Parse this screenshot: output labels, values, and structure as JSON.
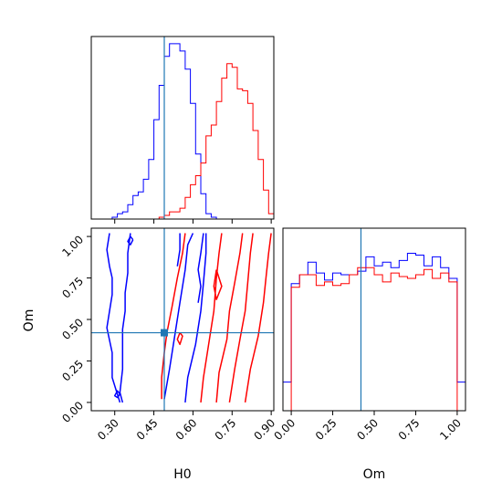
{
  "chart_data": {
    "type": "corner",
    "colors": {
      "series_a": "#0000ff",
      "series_b": "#ff0000",
      "truth": "#1f77b4"
    },
    "axes": {
      "H0": {
        "label": "H0",
        "range": [
          0.21,
          0.91
        ],
        "ticks": [
          "0.30",
          "0.45",
          "0.60",
          "0.75",
          "0.90"
        ]
      },
      "Om": {
        "label": "Om",
        "range": [
          -0.05,
          1.05
        ],
        "ticks": [
          "0.00",
          "0.25",
          "0.50",
          "0.75",
          "1.00"
        ]
      }
    },
    "truth": {
      "H0": 0.49,
      "Om": 0.42
    },
    "hist_H0": {
      "bins": [
        0.21,
        0.23,
        0.25,
        0.27,
        0.29,
        0.31,
        0.33,
        0.35,
        0.37,
        0.39,
        0.41,
        0.43,
        0.45,
        0.47,
        0.49,
        0.51,
        0.53,
        0.55,
        0.57,
        0.59,
        0.61,
        0.63,
        0.65,
        0.67,
        0.69,
        0.71,
        0.73,
        0.75,
        0.77,
        0.79,
        0.81,
        0.83,
        0.85,
        0.87,
        0.89,
        0.91
      ],
      "series": [
        {
          "color": "#0000ff",
          "values": [
            0,
            0,
            0,
            0,
            0.01,
            0.03,
            0.04,
            0.08,
            0.13,
            0.15,
            0.22,
            0.33,
            0.55,
            0.74,
            0.9,
            0.97,
            0.97,
            0.93,
            0.83,
            0.64,
            0.36,
            0.14,
            0.03,
            0.01,
            0,
            0,
            0,
            0,
            0,
            0,
            0,
            0,
            0,
            0,
            0
          ]
        },
        {
          "color": "#ff0000",
          "values": [
            0,
            0,
            0,
            0,
            0,
            0,
            0,
            0,
            0,
            0,
            0,
            0,
            0,
            0.01,
            0.02,
            0.04,
            0.04,
            0.06,
            0.12,
            0.19,
            0.24,
            0.31,
            0.46,
            0.52,
            0.65,
            0.78,
            0.86,
            0.84,
            0.72,
            0.71,
            0.64,
            0.49,
            0.33,
            0.16,
            0.03
          ]
        }
      ]
    },
    "hist_Om": {
      "bins": [
        -0.05,
        0.0,
        0.05,
        0.1,
        0.15,
        0.2,
        0.25,
        0.3,
        0.35,
        0.4,
        0.45,
        0.5,
        0.55,
        0.6,
        0.65,
        0.7,
        0.75,
        0.8,
        0.85,
        0.9,
        0.95,
        1.0,
        1.05
      ],
      "series": [
        {
          "color": "#0000ff",
          "values": [
            0.16,
            0.71,
            0.76,
            0.83,
            0.77,
            0.73,
            0.77,
            0.76,
            0.76,
            0.78,
            0.86,
            0.81,
            0.83,
            0.8,
            0.84,
            0.88,
            0.87,
            0.81,
            0.86,
            0.8,
            0.74,
            0.16
          ]
        },
        {
          "color": "#ff0000",
          "values": [
            0,
            0.69,
            0.76,
            0.76,
            0.7,
            0.72,
            0.7,
            0.71,
            0.76,
            0.8,
            0.8,
            0.76,
            0.72,
            0.77,
            0.75,
            0.74,
            0.76,
            0.79,
            0.74,
            0.77,
            0.72,
            0
          ]
        }
      ]
    },
    "contours": [
      {
        "color": "#0000ff",
        "lines": [
          [
            [
              0.36,
              1.02
            ],
            [
              0.35,
              0.9
            ],
            [
              0.35,
              0.78
            ],
            [
              0.34,
              0.66
            ],
            [
              0.34,
              0.55
            ],
            [
              0.33,
              0.44
            ],
            [
              0.33,
              0.32
            ],
            [
              0.33,
              0.2
            ],
            [
              0.32,
              0.06
            ],
            [
              0.33,
              0.0
            ]
          ],
          [
            [
              0.32,
              0.0
            ],
            [
              0.29,
              0.15
            ],
            [
              0.29,
              0.3
            ],
            [
              0.27,
              0.45
            ],
            [
              0.28,
              0.55
            ],
            [
              0.29,
              0.65
            ],
            [
              0.29,
              0.75
            ],
            [
              0.28,
              0.82
            ],
            [
              0.27,
              0.92
            ],
            [
              0.28,
              1.02
            ]
          ],
          [
            [
              0.49,
              0.02
            ],
            [
              0.51,
              0.2
            ],
            [
              0.53,
              0.4
            ],
            [
              0.55,
              0.6
            ],
            [
              0.57,
              0.8
            ],
            [
              0.58,
              0.95
            ],
            [
              0.6,
              1.02
            ]
          ],
          [
            [
              0.57,
              0.0
            ],
            [
              0.58,
              0.15
            ],
            [
              0.61,
              0.35
            ],
            [
              0.63,
              0.55
            ],
            [
              0.64,
              0.72
            ],
            [
              0.65,
              0.9
            ],
            [
              0.65,
              1.02
            ]
          ],
          [
            [
              0.64,
              1.02
            ],
            [
              0.63,
              0.9
            ],
            [
              0.62,
              0.8
            ],
            [
              0.63,
              0.7
            ],
            [
              0.62,
              0.6
            ]
          ],
          [
            [
              0.32,
              0.05
            ],
            [
              0.31,
              0.03
            ],
            [
              0.3,
              0.04
            ],
            [
              0.31,
              0.07
            ],
            [
              0.32,
              0.05
            ]
          ],
          [
            [
              0.37,
              0.98
            ],
            [
              0.36,
              0.95
            ],
            [
              0.35,
              0.97
            ],
            [
              0.36,
              1.0
            ],
            [
              0.37,
              0.98
            ]
          ],
          [
            [
              0.55,
              1.02
            ],
            [
              0.55,
              0.92
            ],
            [
              0.54,
              0.82
            ]
          ]
        ]
      },
      {
        "color": "#ff0000",
        "lines": [
          [
            [
              0.48,
              0.02
            ],
            [
              0.48,
              0.15
            ],
            [
              0.49,
              0.3
            ],
            [
              0.5,
              0.42
            ],
            [
              0.52,
              0.58
            ],
            [
              0.54,
              0.75
            ],
            [
              0.56,
              0.9
            ],
            [
              0.57,
              1.02
            ]
          ],
          [
            [
              0.63,
              0.0
            ],
            [
              0.64,
              0.15
            ],
            [
              0.66,
              0.35
            ],
            [
              0.68,
              0.55
            ],
            [
              0.69,
              0.75
            ],
            [
              0.7,
              0.9
            ],
            [
              0.71,
              1.02
            ]
          ],
          [
            [
              0.69,
              0.0
            ],
            [
              0.7,
              0.18
            ],
            [
              0.73,
              0.38
            ],
            [
              0.74,
              0.55
            ],
            [
              0.76,
              0.72
            ],
            [
              0.78,
              0.9
            ],
            [
              0.79,
              1.02
            ]
          ],
          [
            [
              0.74,
              0.0
            ],
            [
              0.76,
              0.2
            ],
            [
              0.78,
              0.38
            ],
            [
              0.8,
              0.55
            ],
            [
              0.81,
              0.72
            ],
            [
              0.82,
              0.9
            ],
            [
              0.83,
              1.02
            ]
          ],
          [
            [
              0.8,
              0.0
            ],
            [
              0.82,
              0.2
            ],
            [
              0.85,
              0.4
            ],
            [
              0.87,
              0.6
            ],
            [
              0.88,
              0.75
            ],
            [
              0.89,
              0.9
            ],
            [
              0.9,
              1.02
            ]
          ],
          [
            [
              0.69,
              0.8
            ],
            [
              0.68,
              0.7
            ],
            [
              0.69,
              0.62
            ],
            [
              0.71,
              0.7
            ],
            [
              0.69,
              0.8
            ]
          ],
          [
            [
              0.55,
              0.42
            ],
            [
              0.54,
              0.38
            ],
            [
              0.55,
              0.35
            ],
            [
              0.56,
              0.4
            ],
            [
              0.55,
              0.42
            ]
          ]
        ]
      }
    ],
    "truth_marker": {
      "H0": 0.49,
      "Om": 0.42
    }
  }
}
